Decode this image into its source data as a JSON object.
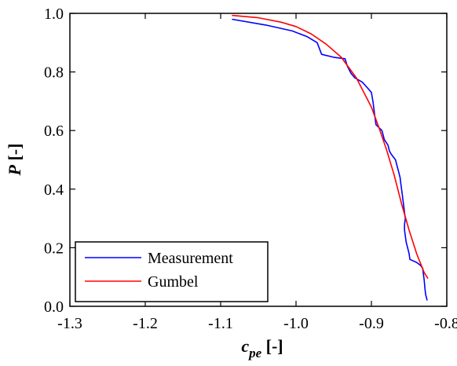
{
  "chart_data": {
    "type": "line",
    "title": "",
    "xlabel": {
      "main": "c",
      "sub": "pe",
      "unit": " [-]"
    },
    "ylabel": {
      "main": "P",
      "unit": " [-]"
    },
    "xlim": [
      -1.3,
      -0.8
    ],
    "ylim": [
      0.0,
      1.0
    ],
    "x_ticks": [
      "-1.3",
      "-1.2",
      "-1.1",
      "-1.0",
      "-0.9",
      "-0.8"
    ],
    "y_ticks": [
      "0.0",
      "0.2",
      "0.4",
      "0.6",
      "0.8",
      "1.0"
    ],
    "grid": false,
    "legend_position": "bottom-left",
    "series": [
      {
        "name": "Measurement",
        "color": "#0000ff",
        "points": [
          [
            -1.085,
            0.98
          ],
          [
            -1.04,
            0.96
          ],
          [
            -1.005,
            0.94
          ],
          [
            -0.985,
            0.92
          ],
          [
            -0.972,
            0.9
          ],
          [
            -0.966,
            0.86
          ],
          [
            -0.95,
            0.85
          ],
          [
            -0.935,
            0.845
          ],
          [
            -0.932,
            0.82
          ],
          [
            -0.927,
            0.795
          ],
          [
            -0.922,
            0.78
          ],
          [
            -0.912,
            0.765
          ],
          [
            -0.905,
            0.745
          ],
          [
            -0.9,
            0.73
          ],
          [
            -0.898,
            0.7
          ],
          [
            -0.897,
            0.68
          ],
          [
            -0.896,
            0.66
          ],
          [
            -0.895,
            0.64
          ],
          [
            -0.894,
            0.62
          ],
          [
            -0.886,
            0.6
          ],
          [
            -0.884,
            0.58
          ],
          [
            -0.883,
            0.57
          ],
          [
            -0.878,
            0.55
          ],
          [
            -0.876,
            0.53
          ],
          [
            -0.874,
            0.52
          ],
          [
            -0.868,
            0.5
          ],
          [
            -0.866,
            0.48
          ],
          [
            -0.864,
            0.46
          ],
          [
            -0.862,
            0.44
          ],
          [
            -0.861,
            0.42
          ],
          [
            -0.86,
            0.4
          ],
          [
            -0.859,
            0.38
          ],
          [
            -0.858,
            0.36
          ],
          [
            -0.857,
            0.34
          ],
          [
            -0.856,
            0.32
          ],
          [
            -0.855,
            0.3
          ],
          [
            -0.856,
            0.28
          ],
          [
            -0.856,
            0.26
          ],
          [
            -0.855,
            0.24
          ],
          [
            -0.854,
            0.22
          ],
          [
            -0.852,
            0.2
          ],
          [
            -0.85,
            0.18
          ],
          [
            -0.849,
            0.16
          ],
          [
            -0.84,
            0.15
          ],
          [
            -0.835,
            0.14
          ],
          [
            -0.832,
            0.13
          ],
          [
            -0.831,
            0.11
          ],
          [
            -0.83,
            0.09
          ],
          [
            -0.829,
            0.06
          ],
          [
            -0.828,
            0.04
          ],
          [
            -0.826,
            0.02
          ]
        ]
      },
      {
        "name": "Gumbel",
        "color": "#ff0000",
        "points": [
          [
            -1.085,
            0.993
          ],
          [
            -1.05,
            0.985
          ],
          [
            -1.02,
            0.97
          ],
          [
            -1.0,
            0.955
          ],
          [
            -0.98,
            0.93
          ],
          [
            -0.96,
            0.895
          ],
          [
            -0.94,
            0.85
          ],
          [
            -0.92,
            0.78
          ],
          [
            -0.9,
            0.68
          ],
          [
            -0.89,
            0.61
          ],
          [
            -0.88,
            0.535
          ],
          [
            -0.87,
            0.45
          ],
          [
            -0.86,
            0.35
          ],
          [
            -0.85,
            0.26
          ],
          [
            -0.84,
            0.18
          ],
          [
            -0.83,
            0.115
          ],
          [
            -0.825,
            0.095
          ]
        ]
      }
    ]
  }
}
